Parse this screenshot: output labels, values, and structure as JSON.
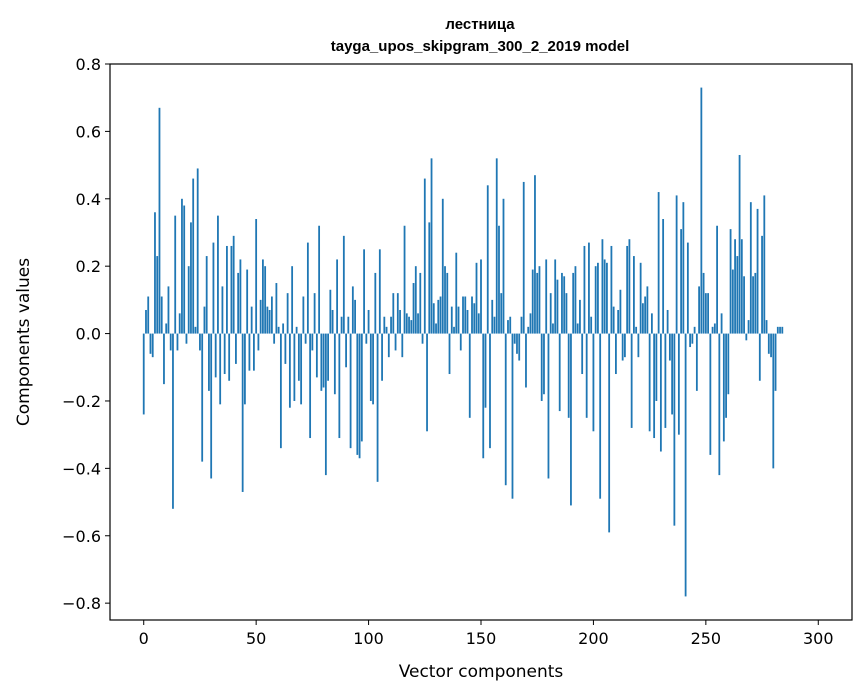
{
  "chart_data": {
    "type": "bar",
    "title": "лестница",
    "subtitle": "tayga_upos_skipgram_300_2_2019 model",
    "xlabel": "Vector components",
    "ylabel": "Components values",
    "xlim": [
      -15,
      315
    ],
    "ylim": [
      -0.85,
      0.8
    ],
    "xticks": [
      0,
      50,
      100,
      150,
      200,
      250,
      300
    ],
    "xtick_labels": [
      "0",
      "50",
      "100",
      "150",
      "200",
      "250",
      "300"
    ],
    "yticks": [
      -0.8,
      -0.6,
      -0.4,
      -0.2,
      0.0,
      0.2,
      0.4,
      0.6,
      0.8
    ],
    "ytick_labels": [
      "−0.8",
      "−0.6",
      "−0.4",
      "−0.2",
      "0.0",
      "0.2",
      "0.4",
      "0.6",
      "0.8"
    ],
    "grid": false,
    "bar_color": "#1f77b4",
    "values": [
      -0.24,
      0.07,
      0.11,
      -0.06,
      -0.07,
      0.36,
      0.23,
      0.67,
      0.11,
      -0.15,
      0.03,
      0.14,
      -0.05,
      -0.52,
      0.35,
      -0.05,
      0.06,
      0.4,
      0.38,
      -0.03,
      0.2,
      0.33,
      0.46,
      0.02,
      0.49,
      -0.05,
      -0.38,
      0.08,
      0.23,
      -0.17,
      -0.43,
      0.27,
      -0.13,
      0.35,
      -0.21,
      0.14,
      -0.12,
      0.26,
      -0.14,
      0.26,
      0.29,
      -0.09,
      0.18,
      0.22,
      -0.47,
      -0.21,
      0.19,
      -0.11,
      0.08,
      -0.11,
      0.34,
      -0.05,
      0.1,
      0.22,
      0.2,
      0.08,
      0.07,
      0.11,
      -0.03,
      0.15,
      0.02,
      -0.34,
      0.03,
      -0.09,
      0.12,
      -0.22,
      0.2,
      -0.2,
      0.02,
      -0.14,
      -0.21,
      0.11,
      -0.03,
      0.27,
      -0.31,
      -0.05,
      0.12,
      -0.13,
      0.32,
      -0.17,
      -0.16,
      -0.42,
      -0.14,
      0.13,
      0.07,
      -0.18,
      0.22,
      -0.31,
      0.05,
      0.29,
      -0.1,
      0.05,
      -0.34,
      0.14,
      0.1,
      -0.36,
      -0.37,
      -0.32,
      0.25,
      -0.03,
      0.07,
      -0.2,
      -0.21,
      0.18,
      -0.44,
      0.25,
      -0.14,
      0.05,
      0.02,
      -0.07,
      0.05,
      0.12,
      -0.05,
      0.12,
      0.07,
      -0.07,
      0.32,
      0.06,
      0.05,
      0.04,
      0.15,
      0.2,
      0.06,
      0.18,
      -0.03,
      0.46,
      -0.29,
      0.33,
      0.52,
      0.09,
      0.03,
      0.1,
      0.11,
      0.4,
      0.2,
      0.18,
      -0.12,
      0.08,
      0.02,
      0.24,
      0.08,
      -0.05,
      0.11,
      0.11,
      0.07,
      -0.25,
      0.11,
      0.09,
      0.21,
      0.06,
      0.22,
      -0.37,
      -0.22,
      0.44,
      -0.34,
      0.1,
      0.05,
      0.52,
      0.32,
      0.12,
      0.4,
      -0.45,
      0.04,
      0.05,
      -0.49,
      -0.03,
      -0.06,
      -0.08,
      0.05,
      0.45,
      -0.16,
      0.02,
      0.06,
      0.19,
      0.47,
      0.18,
      0.2,
      -0.2,
      -0.18,
      0.22,
      -0.43,
      0.12,
      0.03,
      0.22,
      0.16,
      -0.23,
      0.18,
      0.17,
      0.12,
      -0.25,
      -0.51,
      0.18,
      0.2,
      0.03,
      0.1,
      -0.12,
      0.26,
      -0.25,
      0.27,
      0.05,
      -0.29,
      0.2,
      0.21,
      -0.49,
      0.28,
      0.22,
      0.21,
      -0.59,
      0.26,
      0.08,
      -0.12,
      0.07,
      0.13,
      -0.08,
      -0.07,
      0.26,
      0.28,
      -0.28,
      0.23,
      0.02,
      -0.07,
      0.21,
      0.09,
      0.11,
      0.14,
      -0.29,
      0.06,
      -0.31,
      -0.2,
      0.42,
      -0.35,
      0.34,
      -0.28,
      0.07,
      -0.08,
      -0.24,
      -0.57,
      0.41,
      -0.3,
      0.31,
      0.39,
      -0.78,
      0.27,
      -0.04,
      -0.03,
      0.02,
      -0.17,
      0.14,
      0.73,
      0.18,
      0.12,
      0.12,
      -0.36,
      0.02,
      0.03,
      0.32,
      -0.42,
      0.06,
      -0.32,
      -0.25,
      -0.18,
      0.31,
      0.19,
      0.28,
      0.23,
      0.53,
      0.28,
      0.17,
      -0.02,
      0.04,
      0.39,
      0.17,
      0.18,
      0.37,
      -0.14,
      0.29,
      0.41,
      0.04,
      -0.06,
      -0.07,
      -0.4,
      -0.17,
      0.02,
      0.02,
      0.02
    ]
  }
}
